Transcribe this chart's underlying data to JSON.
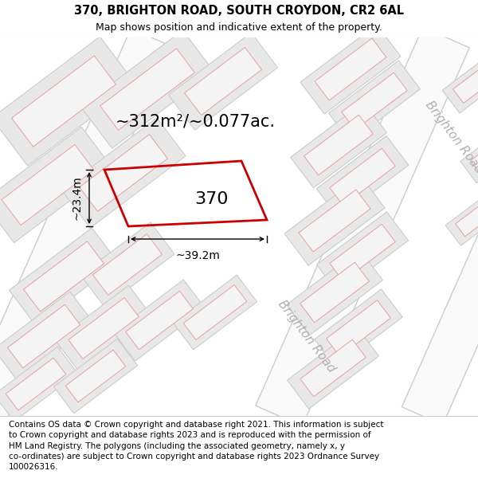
{
  "title_line1": "370, BRIGHTON ROAD, SOUTH CROYDON, CR2 6AL",
  "title_line2": "Map shows position and indicative extent of the property.",
  "footer_text": "Contains OS data © Crown copyright and database right 2021. This information is subject\nto Crown copyright and database rights 2023 and is reproduced with the permission of\nHM Land Registry. The polygons (including the associated geometry, namely x, y\nco-ordinates) are subject to Crown copyright and database rights 2023 Ordnance Survey\n100026316.",
  "map_bg_color": "#f0f0f0",
  "road_color": "#fafafa",
  "road_edge_color": "#cccccc",
  "block_fill": "#e8e8e8",
  "block_edge": "#cccccc",
  "inner_fill": "#f4f4f4",
  "inner_edge": "#e8a0a0",
  "plot_edge": "#cc0000",
  "area_text": "~312m²/~0.077ac.",
  "width_text": "~39.2m",
  "height_text": "~23.4m",
  "number_text": "370",
  "road_label_center": "Brighton Road",
  "road_label_right": "Brighton Road",
  "title_fontsize": 10.5,
  "subtitle_fontsize": 9,
  "area_fontsize": 15,
  "dim_fontsize": 10,
  "num_fontsize": 16,
  "road_fontsize": 11,
  "footer_fontsize": 7.5
}
